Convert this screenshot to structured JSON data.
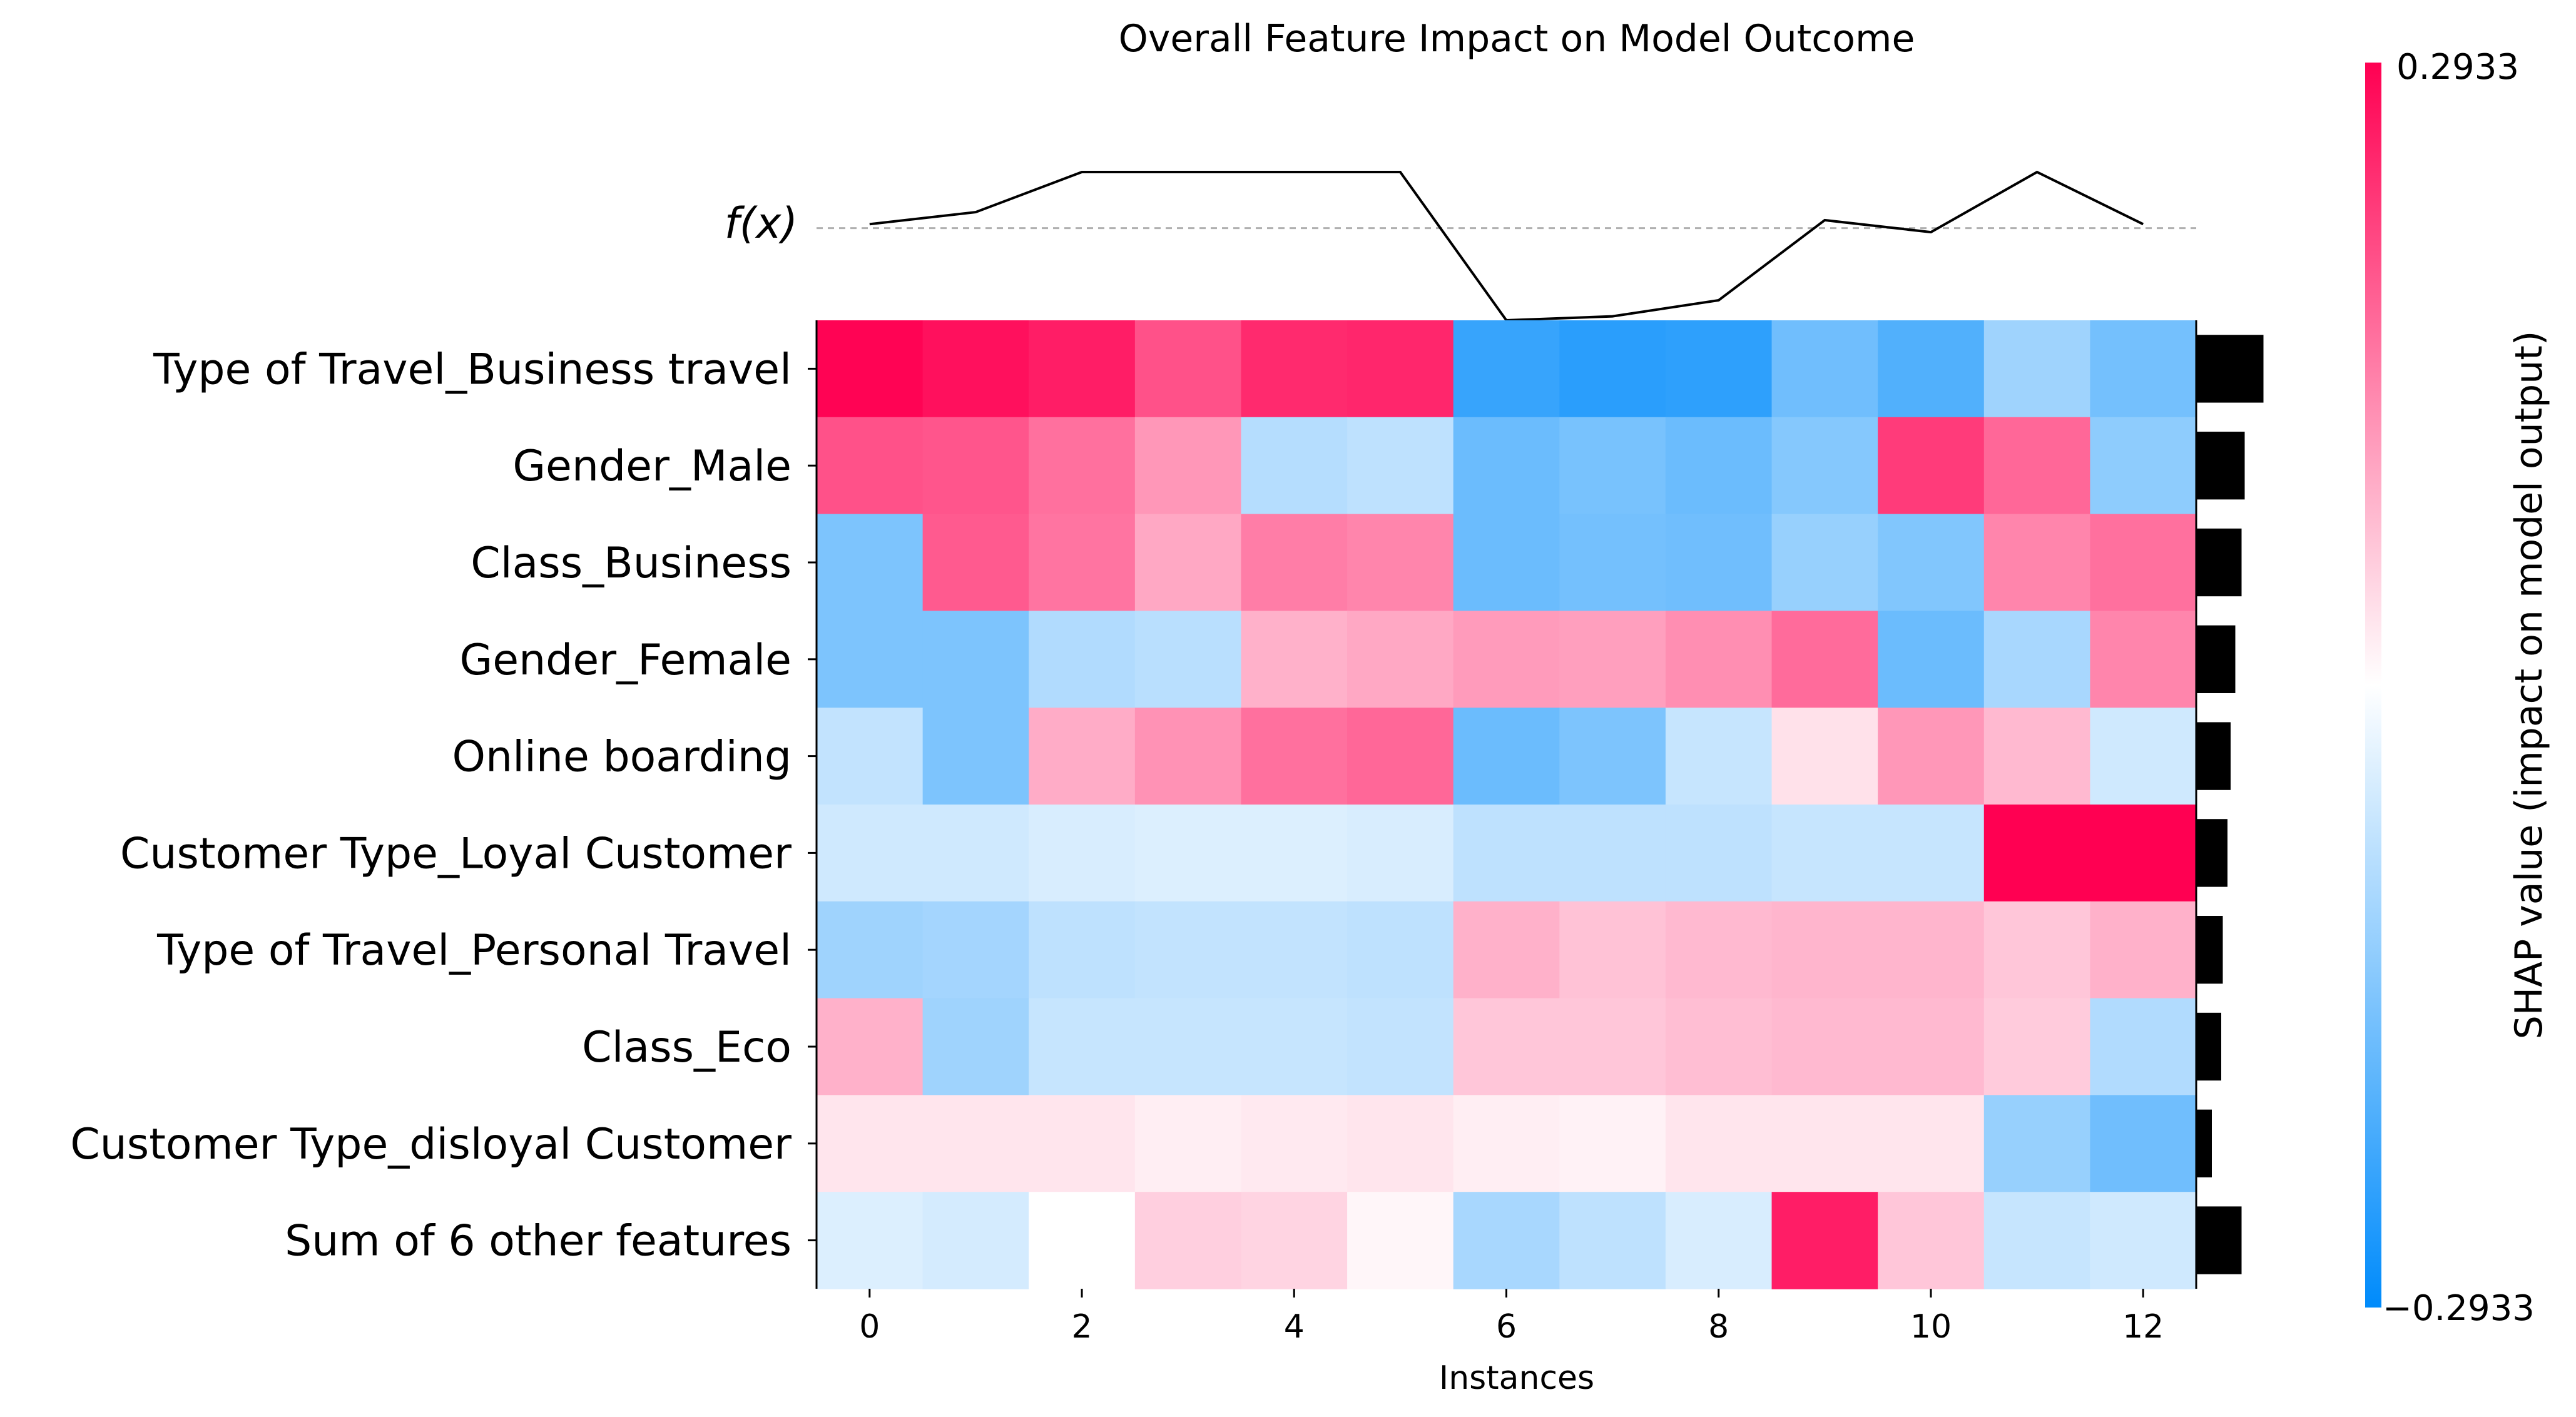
{
  "chart_data": {
    "type": "heatmap",
    "title": "Overall Feature Impact on Model Outcome",
    "xlabel": "Instances",
    "fx_label": "f(x)",
    "colorbar_label": "SHAP value (impact on model output)",
    "colorbar_max_label": "0.2933",
    "colorbar_min_label": "−0.2933",
    "vmin": -0.2933,
    "vmax": 0.2933,
    "xlim": [
      -0.5,
      12.5
    ],
    "xticks": [
      "0",
      "2",
      "4",
      "6",
      "8",
      "10",
      "12"
    ],
    "xtick_values": [
      0,
      2,
      4,
      6,
      8,
      10,
      12
    ],
    "instances": [
      0,
      1,
      2,
      3,
      4,
      5,
      6,
      7,
      8,
      9,
      10,
      11,
      12
    ],
    "colors": {
      "negative": "#008bfb",
      "positive": "#ff0052",
      "neutral": "#ffffff",
      "bars": "#000000",
      "fx_line": "#000000",
      "baseline": "#b0b0b0"
    },
    "features": [
      "Type of Travel_Business travel",
      "Gender_Male",
      "Class_Business",
      "Gender_Female",
      "Online boarding",
      "Customer Type_Loyal Customer",
      "Type of Travel_Personal Travel",
      "Class_Eco",
      "Customer Type_disloyal Customer",
      "Sum of 6 other features"
    ],
    "shap_values": [
      [
        0.29,
        0.275,
        0.26,
        0.2,
        0.245,
        0.25,
        -0.23,
        -0.245,
        -0.24,
        -0.165,
        -0.2,
        -0.11,
        -0.16
      ],
      [
        0.2,
        0.195,
        0.165,
        0.12,
        -0.085,
        -0.075,
        -0.17,
        -0.155,
        -0.17,
        -0.14,
        0.225,
        0.175,
        -0.13
      ],
      [
        -0.15,
        0.19,
        0.16,
        0.1,
        0.15,
        0.14,
        -0.17,
        -0.16,
        -0.165,
        -0.12,
        -0.145,
        0.14,
        0.165
      ],
      [
        -0.15,
        -0.15,
        -0.09,
        -0.08,
        0.09,
        0.1,
        0.115,
        0.11,
        0.13,
        0.17,
        -0.17,
        -0.1,
        0.14
      ],
      [
        -0.07,
        -0.15,
        0.095,
        0.125,
        0.165,
        0.175,
        -0.17,
        -0.15,
        -0.065,
        0.035,
        0.12,
        0.08,
        -0.055
      ],
      [
        -0.055,
        -0.055,
        -0.045,
        -0.04,
        -0.04,
        -0.045,
        -0.075,
        -0.075,
        -0.075,
        -0.065,
        -0.065,
        0.293,
        0.293
      ],
      [
        -0.11,
        -0.105,
        -0.075,
        -0.07,
        -0.07,
        -0.075,
        0.09,
        0.07,
        0.08,
        0.085,
        0.085,
        0.065,
        0.09
      ],
      [
        0.09,
        -0.11,
        -0.065,
        -0.065,
        -0.065,
        -0.07,
        0.065,
        0.065,
        0.075,
        0.08,
        0.08,
        0.06,
        -0.09
      ],
      [
        0.03,
        0.03,
        0.03,
        0.02,
        0.025,
        0.03,
        0.02,
        0.015,
        0.03,
        0.03,
        0.03,
        -0.12,
        -0.165
      ],
      [
        -0.04,
        -0.05,
        0.0,
        0.055,
        0.05,
        0.01,
        -0.1,
        -0.075,
        -0.045,
        0.26,
        0.065,
        -0.065,
        -0.055
      ]
    ],
    "mean_abs_shap": [
      0.215,
      0.155,
      0.145,
      0.125,
      0.11,
      0.1,
      0.085,
      0.08,
      0.05,
      0.145
    ],
    "fx_values": [
      0.35,
      0.5,
      1.0,
      1.0,
      1.0,
      1.0,
      -0.85,
      -0.8,
      -0.6,
      0.4,
      0.25,
      1.0,
      0.35
    ],
    "fx_baseline": 0.3
  }
}
